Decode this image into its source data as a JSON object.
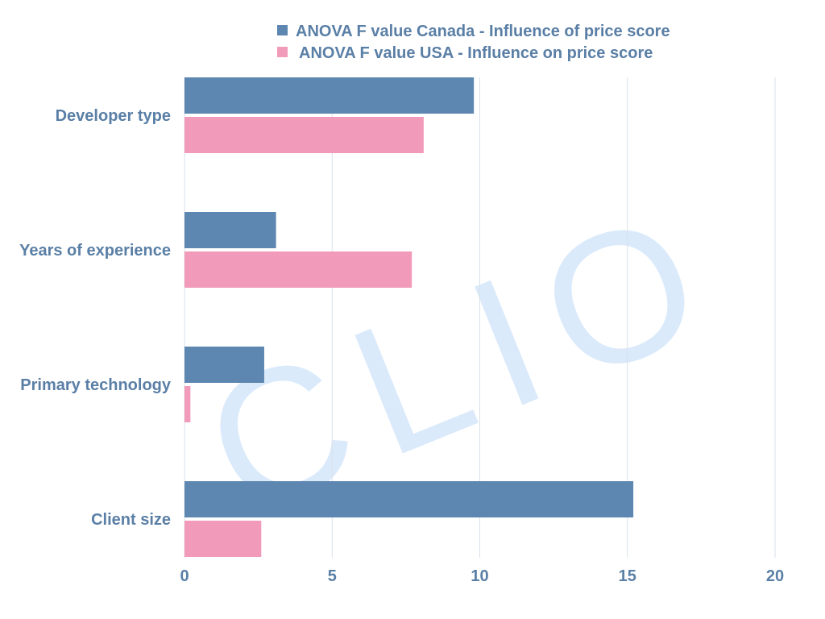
{
  "chart_data": {
    "type": "bar",
    "orientation": "horizontal",
    "categories": [
      "Developer type",
      "Years of experience",
      "Primary technology",
      "Client size"
    ],
    "series": [
      {
        "name": "ANOVA F value Canada - Influence of price score",
        "color": "#5d87b0",
        "values": [
          9.8,
          3.1,
          2.7,
          15.2
        ]
      },
      {
        "name": "ANOVA F value USA - Influence on price score",
        "color": "#f29ab9",
        "values": [
          8.1,
          7.7,
          0.2,
          2.6
        ]
      }
    ],
    "xlim": [
      0,
      20
    ],
    "xticks": [
      "0",
      "5",
      "10",
      "15",
      "20"
    ],
    "xtick_values": [
      0,
      5,
      10,
      15,
      20
    ],
    "grid": "vertical",
    "legend_position": "top",
    "label_color": "#5a7fa6",
    "grid_color": "#d9e1ea",
    "watermark": "CLIO",
    "watermark_color": "#d6e8fb"
  }
}
